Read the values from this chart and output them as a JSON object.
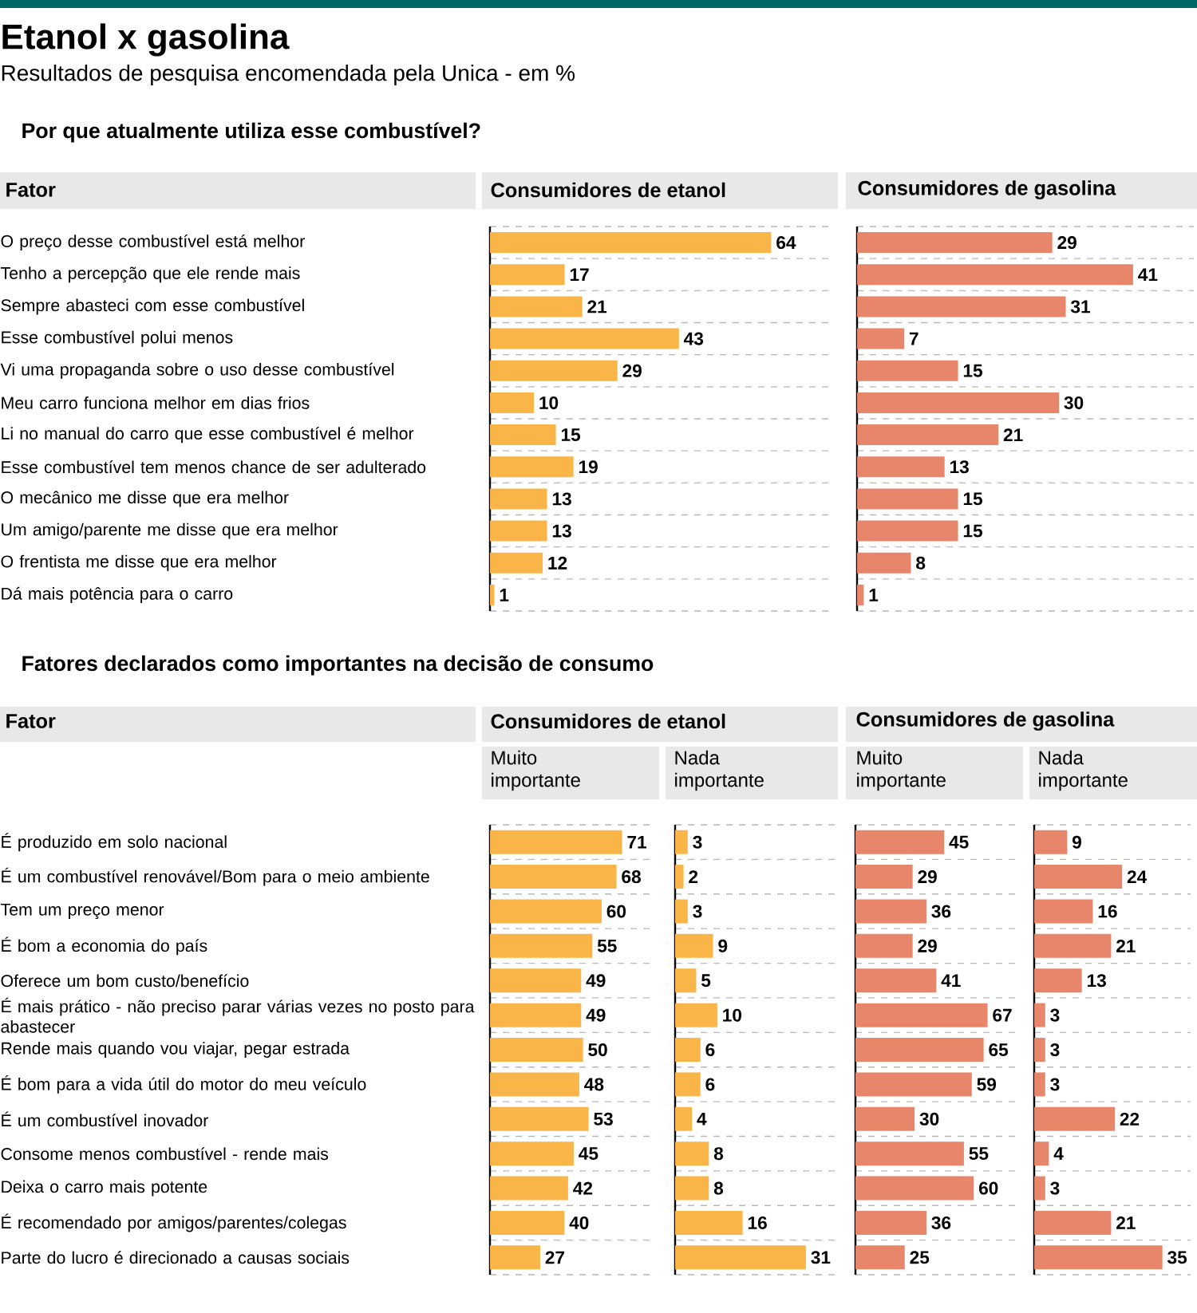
{
  "chart_data": [
    {
      "type": "bar",
      "orientation": "horizontal",
      "title": "Etanol x gasolina",
      "subtitle": "Resultados de pesquisa encomendada pela Unica - em %",
      "annotations": [
        "Por que atualmente utiliza esse combustível?",
        "Fator",
        "Consumidores de etanol"
      ],
      "categories": [
        "O preço desse combustível está melhor",
        "Tenho a percepção que ele rende mais",
        "Sempre abasteci com esse combustível",
        "Esse combustível polui menos",
        "Vi uma propaganda sobre o uso desse combustível",
        "Meu carro funciona melhor em dias frios",
        "Li no manual do carro que esse combustível é melhor",
        "Esse combustível tem menos chance de ser adulterado",
        "O mecânico me disse que era melhor",
        "Um amigo/parente me disse que era melhor",
        "O frentista me disse que era melhor",
        "Dá mais potência para o carro"
      ],
      "values": [
        64,
        17,
        21,
        43,
        29,
        10,
        15,
        19,
        13,
        13,
        12,
        1
      ],
      "color": "#f9b548",
      "grid": true,
      "data_labels": true,
      "tick_labels": "y"
    },
    {
      "type": "bar",
      "orientation": "horizontal",
      "title": "Consumidores de gasolina",
      "categories": [
        null,
        null,
        null,
        null,
        null,
        null,
        null,
        null,
        null,
        null,
        null,
        null
      ],
      "values": [
        29,
        41,
        31,
        7,
        15,
        30,
        21,
        13,
        15,
        15,
        8,
        1
      ],
      "color": "#e8866b",
      "grid": true,
      "data_labels": true,
      "tick_labels": "y"
    },
    {
      "type": "bar",
      "orientation": "horizontal",
      "title": "Muito importante",
      "annotations": [
        "Fatores declarados como importantes na decisão de consumo",
        "Fator",
        "Consumidores de etanol"
      ],
      "categories": [
        "É produzido em solo nacional",
        "É um combustível renovável/Bom para o meio ambiente",
        "Tem um preço menor",
        "É bom a economia do país",
        "Oferece um bom custo/benefício",
        "É mais prático - não preciso parar várias vezes no posto para abastecer",
        "Rende mais quando vou viajar, pegar estrada",
        "É bom para a vida útil do motor do meu veículo",
        "É um combustível inovador",
        "Consome menos combustível - rende mais",
        "Deixa o carro mais potente",
        "É recomendado por amigos/parentes/colegas",
        "Parte do lucro é direcionado a causas sociais"
      ],
      "values": [
        71,
        68,
        60,
        55,
        49,
        49,
        50,
        48,
        53,
        45,
        42,
        40,
        27
      ],
      "color": "#f9b548",
      "grid": true,
      "data_labels": true,
      "tick_labels": "y"
    },
    {
      "type": "bar",
      "orientation": "horizontal",
      "title": "Nada importante",
      "categories": [
        null,
        null,
        null,
        null,
        null,
        null,
        null,
        null,
        null,
        null,
        null,
        null,
        null
      ],
      "values": [
        3,
        2,
        3,
        9,
        5,
        10,
        6,
        6,
        4,
        8,
        8,
        16,
        31
      ],
      "color": "#f9b548",
      "grid": true,
      "data_labels": true,
      "tick_labels": "y"
    },
    {
      "type": "bar",
      "orientation": "horizontal",
      "title": "Muito importante",
      "annotations": [
        "Consumidores de gasolina"
      ],
      "categories": [
        null,
        null,
        null,
        null,
        null,
        null,
        null,
        null,
        null,
        null,
        null,
        null,
        null
      ],
      "values": [
        45,
        29,
        36,
        29,
        41,
        67,
        65,
        59,
        30,
        55,
        60,
        36,
        25
      ],
      "color": "#e8866b",
      "grid": true,
      "data_labels": true,
      "tick_labels": "y"
    },
    {
      "type": "bar",
      "orientation": "horizontal",
      "title": "Nada importante",
      "categories": [
        null,
        null,
        null,
        null,
        null,
        null,
        null,
        null,
        null,
        null,
        null,
        null,
        null
      ],
      "values": [
        9,
        24,
        16,
        21,
        13,
        3,
        3,
        3,
        22,
        4,
        3,
        21,
        35
      ],
      "color": "#e8866b",
      "grid": true,
      "data_labels": true,
      "tick_labels": "y"
    }
  ]
}
